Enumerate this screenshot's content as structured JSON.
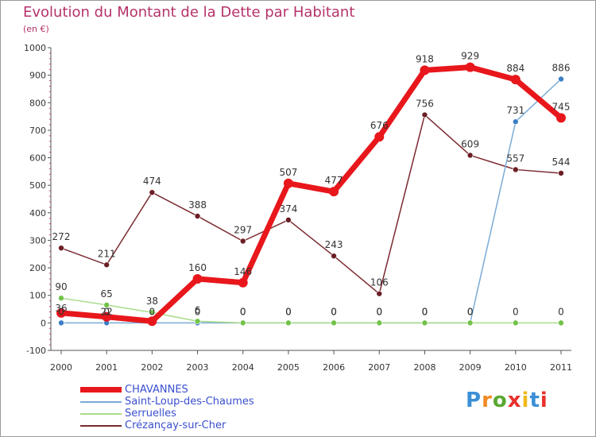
{
  "header": {
    "title": "Evolution du Montant de la Dette par Habitant",
    "subtitle": "(en €)"
  },
  "logo": {
    "text": "Proxiti",
    "colors": [
      "#3b8fd6",
      "#f08a24",
      "#5aa832",
      "#e8312d",
      "#f0b81c",
      "#3b8fd6",
      "#e8312d"
    ]
  },
  "chart_data": {
    "type": "line",
    "x": [
      "2000",
      "2001",
      "2002",
      "2003",
      "2004",
      "2005",
      "2006",
      "2007",
      "2008",
      "2009",
      "2010",
      "2011"
    ],
    "ylim": [
      -100,
      1000
    ],
    "yticks": [
      "-100",
      "0",
      "100",
      "200",
      "300",
      "400",
      "500",
      "600",
      "700",
      "800",
      "900",
      "1000"
    ],
    "grid": false,
    "legend_position": "bottom",
    "series": [
      {
        "name": "CHAVANNES",
        "color": "#e8171c",
        "point_color": "#e8171c",
        "width": 7,
        "values": [
          36,
          22,
          6,
          160,
          146,
          507,
          477,
          676,
          918,
          929,
          884,
          745
        ],
        "labels": [
          "36",
          "22",
          "",
          "160",
          "146",
          "507",
          "477",
          "676",
          "918",
          "929",
          "884",
          "745"
        ]
      },
      {
        "name": "Saint-Loup-des-Chaumes",
        "color": "#7aabd6",
        "point_color": "#3a7fc5",
        "width": 1.5,
        "values": [
          0,
          0,
          0,
          0,
          0,
          0,
          0,
          0,
          0,
          0,
          731,
          886
        ],
        "labels": [
          "0",
          "0",
          "0",
          "0",
          "0",
          "0",
          "0",
          "0",
          "0",
          "0",
          "731",
          "886"
        ]
      },
      {
        "name": "Serruelles",
        "color": "#a8dc8a",
        "point_color": "#72c24a",
        "width": 1.5,
        "values": [
          90,
          65,
          38,
          6,
          0,
          0,
          0,
          0,
          0,
          0,
          0,
          0
        ],
        "labels": [
          "90",
          "65",
          "38",
          "6",
          "0",
          "0",
          "0",
          "0",
          "0",
          "0",
          "0",
          "0"
        ]
      },
      {
        "name": "Crézançay-sur-Cher",
        "color": "#7a2a30",
        "point_color": "#6b1e24",
        "width": 1.5,
        "values": [
          272,
          211,
          474,
          388,
          297,
          374,
          243,
          106,
          756,
          609,
          557,
          544
        ],
        "labels": [
          "272",
          "211",
          "474",
          "388",
          "297",
          "374",
          "243",
          "106",
          "756",
          "609",
          "557",
          "544"
        ]
      }
    ]
  }
}
